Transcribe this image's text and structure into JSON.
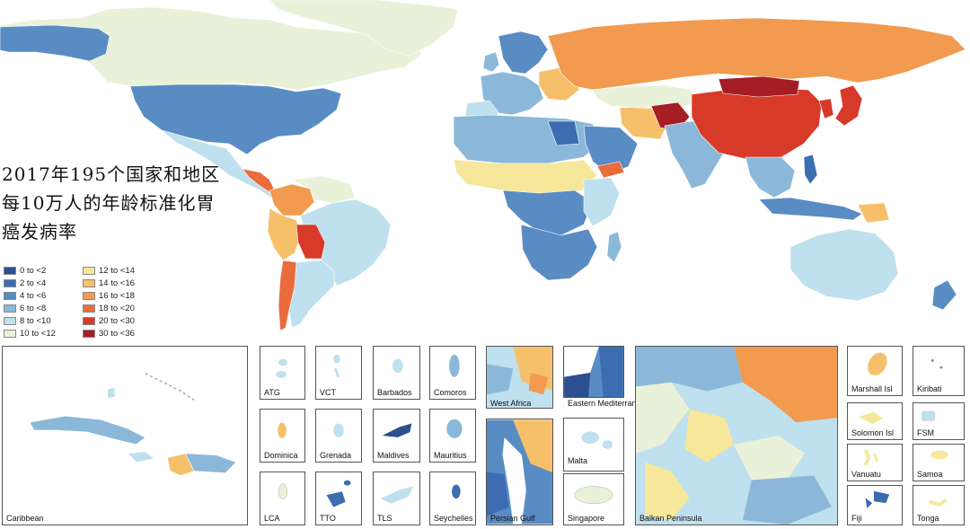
{
  "title_lines": [
    "2017年195个国家和地区",
    "每10万人的年龄标准化胃",
    "癌发病率"
  ],
  "legend": [
    {
      "label": "0 to <2",
      "color": "#2c4f8f"
    },
    {
      "label": "2 to <4",
      "color": "#3d6cb0"
    },
    {
      "label": "4 to <6",
      "color": "#5a8cc4"
    },
    {
      "label": "6 to <8",
      "color": "#8bb8d9"
    },
    {
      "label": "8 to <10",
      "color": "#bfe0ee"
    },
    {
      "label": "10 to <12",
      "color": "#e9f1d8"
    },
    {
      "label": "12 to <14",
      "color": "#f6e79a"
    },
    {
      "label": "14 to <16",
      "color": "#f6c06a"
    },
    {
      "label": "16 to <18",
      "color": "#f29a4f"
    },
    {
      "label": "18 to <20",
      "color": "#ea6c3c"
    },
    {
      "label": "20 to <30",
      "color": "#d83a2a"
    },
    {
      "label": "30 to <36",
      "color": "#a51e24"
    }
  ],
  "insets": {
    "caribbean": "Caribbean",
    "atg": "ATG",
    "vct": "VCT",
    "barbados": "Barbados",
    "comoros": "Comoros",
    "west_africa": "West Africa",
    "eastern_med": "Eastern Mediterranean",
    "dominica": "Dominica",
    "grenada": "Grenada",
    "maldives": "Maldives",
    "mauritius": "Mauritius",
    "malta": "Malta",
    "lca": "LCA",
    "tto": "TTO",
    "tls": "TLS",
    "seychelles": "Seychelles",
    "persian_gulf": "Persian Gulf",
    "singapore": "Singapore",
    "balkan": "Balkan Peninsula",
    "marshall": "Marshall Isl",
    "kiribati": "Kiribati",
    "solomon": "Solomon Isl",
    "fsm": "FSM",
    "vanuatu": "Vanuatu",
    "samoa": "Samoa",
    "fiji": "Fiji",
    "tonga": "Tonga"
  }
}
